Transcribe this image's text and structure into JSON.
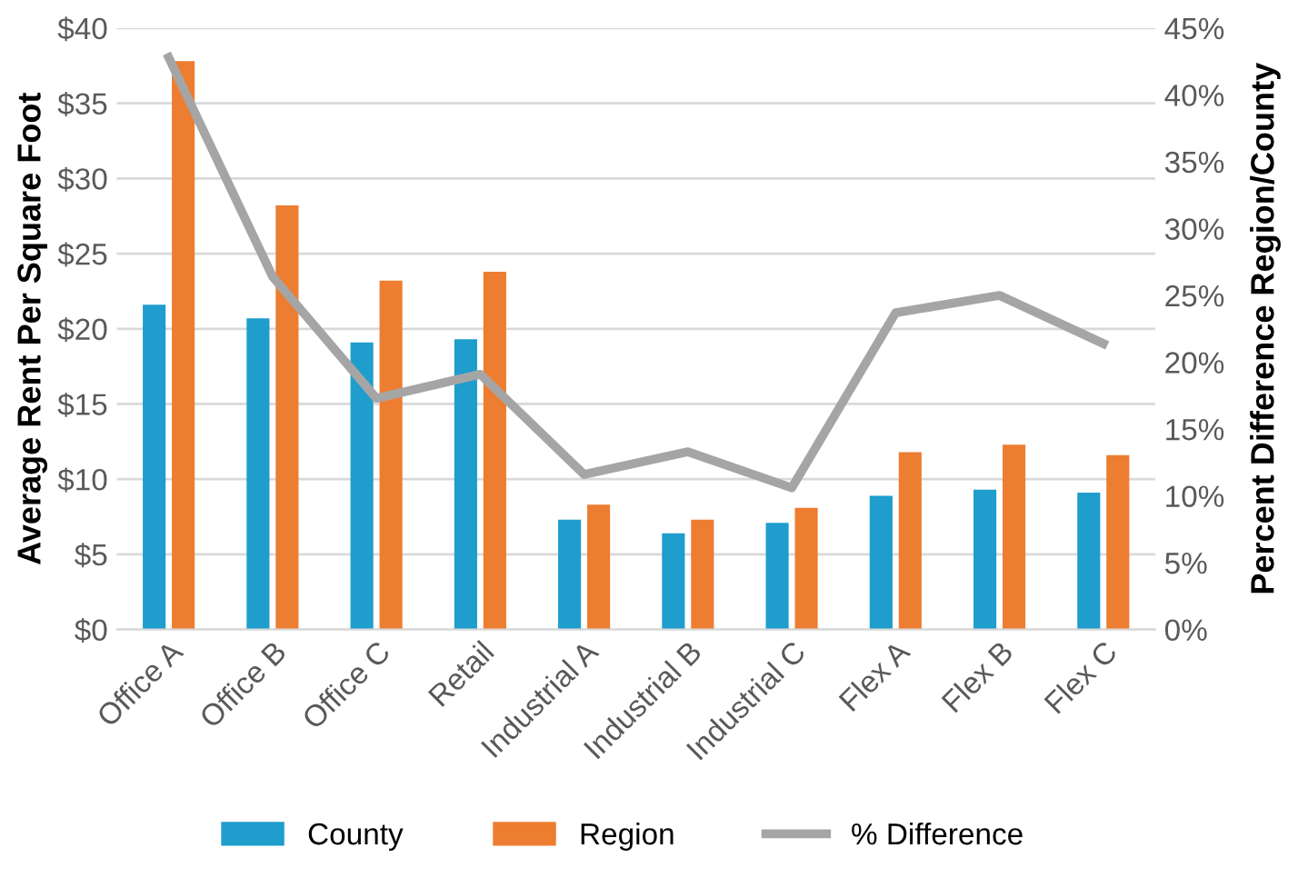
{
  "chart_data": {
    "type": "bar",
    "ylabel": "Average Rent Per Square Foot",
    "y2label": "Percent Difference Region/County",
    "categories": [
      "Office A",
      "Office B",
      "Office C",
      "Retail",
      "Industrial A",
      "Industrial B",
      "Industrial C",
      "Flex A",
      "Flex B",
      "Flex C"
    ],
    "series": [
      {
        "name": "County",
        "color": "#1f9dcc",
        "values": [
          21.6,
          20.7,
          19.1,
          19.3,
          7.3,
          6.4,
          7.1,
          8.9,
          9.3,
          9.1
        ]
      },
      {
        "name": "Region",
        "color": "#ed7d31",
        "values": [
          37.8,
          28.2,
          23.2,
          23.8,
          8.3,
          7.3,
          8.1,
          11.8,
          12.3,
          11.6
        ]
      },
      {
        "name": "% Difference",
        "type": "line",
        "axis": "y2",
        "color": "#a5a5a5",
        "values": [
          42.8,
          26.4,
          17.3,
          19.1,
          11.6,
          13.3,
          10.6,
          23.7,
          25.0,
          21.4
        ]
      }
    ],
    "ylim": [
      0,
      40
    ],
    "yticks": [
      {
        "value": 0,
        "label": "$0"
      },
      {
        "value": 5,
        "label": "$5"
      },
      {
        "value": 10,
        "label": "$10"
      },
      {
        "value": 15,
        "label": "$15"
      },
      {
        "value": 20,
        "label": "$20"
      },
      {
        "value": 25,
        "label": "$25"
      },
      {
        "value": 30,
        "label": "$30"
      },
      {
        "value": 35,
        "label": "$35"
      },
      {
        "value": 40,
        "label": "$40"
      }
    ],
    "y2lim": [
      0,
      45
    ],
    "y2ticks": [
      {
        "value": 0,
        "label": "0%"
      },
      {
        "value": 5,
        "label": "5%"
      },
      {
        "value": 10,
        "label": "10%"
      },
      {
        "value": 15,
        "label": "15%"
      },
      {
        "value": 20,
        "label": "20%"
      },
      {
        "value": 25,
        "label": "25%"
      },
      {
        "value": 30,
        "label": "30%"
      },
      {
        "value": 35,
        "label": "35%"
      },
      {
        "value": 40,
        "label": "40%"
      },
      {
        "value": 45,
        "label": "45%"
      }
    ],
    "grid": "y",
    "legend": "bottom",
    "marker": "none",
    "line_style": "solid"
  }
}
